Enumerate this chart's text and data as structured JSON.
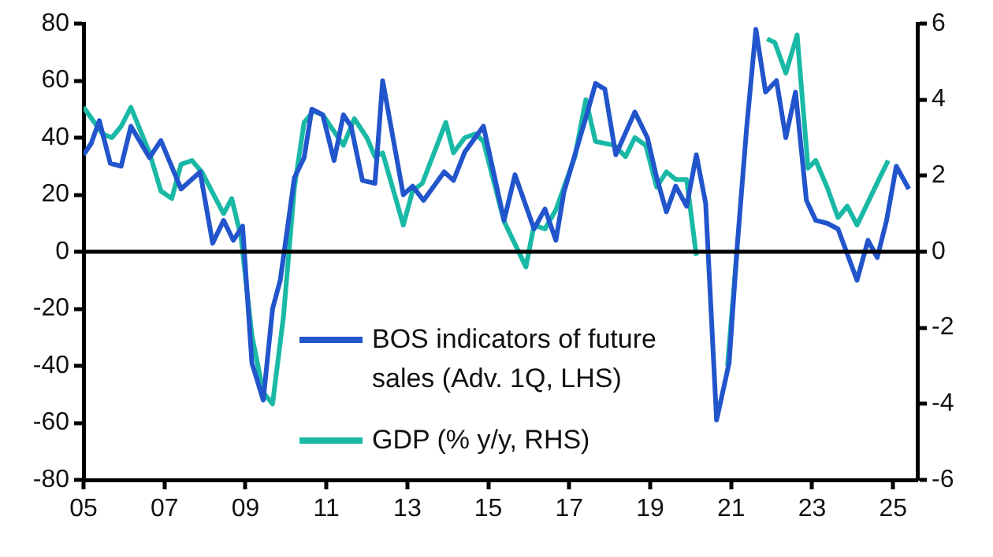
{
  "chart_data": {
    "type": "line",
    "xlim": [
      2005,
      2025.6
    ],
    "xticks": [
      {
        "value": 2005,
        "label": "05"
      },
      {
        "value": 2007,
        "label": "07"
      },
      {
        "value": 2009,
        "label": "09"
      },
      {
        "value": 2011,
        "label": "11"
      },
      {
        "value": 2013,
        "label": "13"
      },
      {
        "value": 2015,
        "label": "15"
      },
      {
        "value": 2017,
        "label": "17"
      },
      {
        "value": 2019,
        "label": "19"
      },
      {
        "value": 2021,
        "label": "21"
      },
      {
        "value": 2023,
        "label": "23"
      },
      {
        "value": 2025,
        "label": "25"
      }
    ],
    "ylim": [
      -80,
      80
    ],
    "yticks": [
      -80,
      -60,
      -40,
      -20,
      0,
      20,
      40,
      60,
      80
    ],
    "y2lim": [
      -6,
      6
    ],
    "y2ticks": [
      -6,
      -4,
      -2,
      0,
      2,
      4,
      6
    ],
    "grid": false,
    "legend": "bottom",
    "marker": "none",
    "line_style": "solid",
    "ref_lines": [
      {
        "axis": "y",
        "value": 0
      }
    ],
    "series": [
      {
        "name": "BOS indicators of future sales (Adv. 1Q, LHS)",
        "color": "#2255cc",
        "x": [
          2005.0,
          2005.19,
          2005.39,
          2005.66,
          2005.93,
          2006.17,
          2006.63,
          2006.91,
          2007.41,
          2007.88,
          2008.19,
          2008.46,
          2008.7,
          2008.93,
          2009.16,
          2009.44,
          2009.67,
          2009.86,
          2010.21,
          2010.45,
          2010.64,
          2010.91,
          2011.19,
          2011.42,
          2011.61,
          2011.89,
          2012.2,
          2012.39,
          2012.9,
          2013.13,
          2013.4,
          2013.91,
          2014.14,
          2014.42,
          2014.88,
          2015.39,
          2015.66,
          2016.13,
          2016.4,
          2016.67,
          2016.87,
          2017.41,
          2017.65,
          2017.88,
          2018.15,
          2018.62,
          2018.93,
          2019.16,
          2019.4,
          2019.63,
          2019.9,
          2020.14,
          2020.37,
          2020.64,
          2020.95,
          2021.15,
          2021.38,
          2021.61,
          2021.85,
          2022.12,
          2022.35,
          2022.59,
          2022.86,
          2023.09,
          2023.37,
          2023.64,
          2024.11,
          2024.38,
          2024.61,
          2024.84,
          2025.08,
          2025.39
        ],
        "values": [
          34,
          38,
          46,
          31,
          30,
          44,
          33,
          39,
          22,
          28,
          3,
          11,
          4,
          9,
          -39,
          -52,
          -20,
          -10,
          26,
          33,
          50,
          48,
          32,
          48,
          44,
          25,
          24,
          60,
          20,
          23,
          18,
          28,
          25,
          35,
          44,
          11,
          27,
          8,
          15,
          4,
          21,
          47,
          59,
          57,
          34,
          49,
          40,
          26,
          14,
          23,
          16,
          34,
          17,
          -59,
          -39,
          2,
          43,
          78,
          56,
          60,
          40,
          56,
          18,
          11,
          10,
          8,
          -10,
          4,
          -2,
          11,
          30,
          22
        ]
      },
      {
        "name": "GDP (% y/y, RHS)",
        "color": "#19b9a6",
        "axis": "y2",
        "x": [
          2005.0,
          2005.47,
          2005.7,
          2005.93,
          2006.17,
          2006.63,
          2006.91,
          2007.18,
          2007.41,
          2007.68,
          2007.92,
          2008.46,
          2008.66,
          2008.89,
          2009.16,
          2009.44,
          2009.67,
          2009.94,
          2010.21,
          2010.45,
          2010.68,
          2010.91,
          2011.42,
          2011.69,
          2012.0,
          2012.2,
          2012.39,
          2012.74,
          2012.9,
          2013.13,
          2013.37,
          2013.95,
          2014.14,
          2014.42,
          2014.69,
          2014.88,
          2015.39,
          2015.93,
          2016.13,
          2016.4,
          2016.67,
          2017.14,
          2017.41,
          2017.65,
          2018.11,
          2018.39,
          2018.62,
          2018.89,
          2019.16,
          2019.4,
          2019.63,
          2019.9,
          2020.14,
          2020.41,
          2020.64,
          2020.91,
          2021.15,
          2021.42,
          2021.65,
          2021.89,
          2022.08,
          2022.35,
          2022.63,
          2022.9,
          2023.09,
          2023.37,
          2023.64,
          2023.87,
          2024.11,
          2024.38,
          2024.65,
          2024.88
        ],
        "values": [
          3.8,
          3.1,
          3.0,
          3.3,
          3.8,
          2.6,
          1.6,
          1.4,
          2.3,
          2.4,
          2.1,
          1.0,
          1.4,
          0.4,
          -2.2,
          -3.7,
          -4.0,
          -1.7,
          1.7,
          3.4,
          3.7,
          3.6,
          2.8,
          3.5,
          3.0,
          2.5,
          2.6,
          1.3,
          0.7,
          1.6,
          1.8,
          3.4,
          2.6,
          3.0,
          3.1,
          2.9,
          0.8,
          -0.4,
          0.7,
          0.6,
          1.1,
          2.5,
          4.0,
          2.9,
          2.8,
          2.5,
          3.0,
          2.8,
          1.7,
          2.1,
          1.9,
          1.9,
          -0.1,
          null,
          null,
          -3.0,
          0.1,
          null,
          null,
          5.6,
          5.5,
          4.7,
          5.7,
          2.2,
          2.4,
          1.7,
          0.9,
          1.2,
          0.7,
          1.3,
          1.9,
          2.4
        ]
      }
    ]
  }
}
